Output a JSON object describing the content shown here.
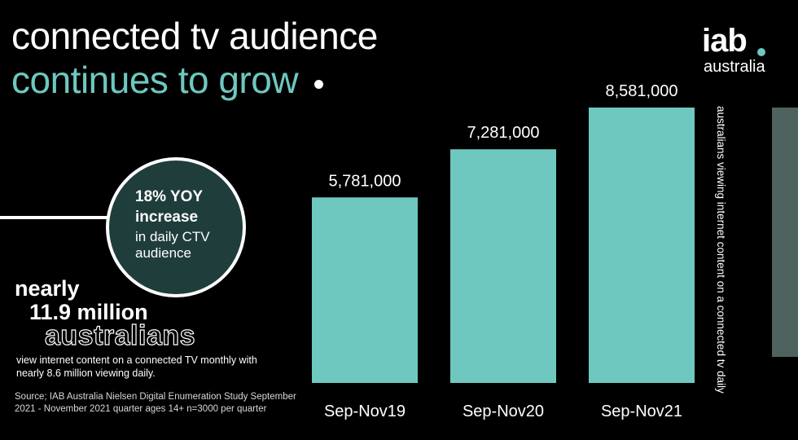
{
  "header": {
    "title_line1": "connected tv audience",
    "title_line2": "continues to grow"
  },
  "logo": {
    "main": "iab",
    "sub": "australia"
  },
  "callout": {
    "bold": "18% YOY increase",
    "text": "in daily CTV audience"
  },
  "highlight": {
    "line1": "nearly",
    "line2": "11.9 million",
    "line3": "australians",
    "description": "view internet content on a connected TV monthly with nearly 8.6 million viewing daily."
  },
  "source": "Source; IAB Australia Nielsen Digital Enumeration Study September 2021 - November 2021 quarter ages 14+ n=3000 per quarter",
  "side_label": "australians viewing internet content on a connected tv daily",
  "colors": {
    "accent": "#6ec8c0",
    "background": "#000000",
    "circle": "#1f3d3b",
    "partial_bar": "#4e625f"
  },
  "chart_data": {
    "type": "bar",
    "categories": [
      "Sep-Nov19",
      "Sep-Nov20",
      "Sep-Nov21"
    ],
    "values": [
      5781000,
      7281000,
      8581000
    ],
    "value_labels": [
      "5,781,000",
      "7,281,000",
      "8,581,000"
    ],
    "ylabel": "australians viewing internet content on a connected tv daily",
    "ylim": [
      0,
      8581000
    ],
    "grid": false,
    "legend": "none"
  }
}
